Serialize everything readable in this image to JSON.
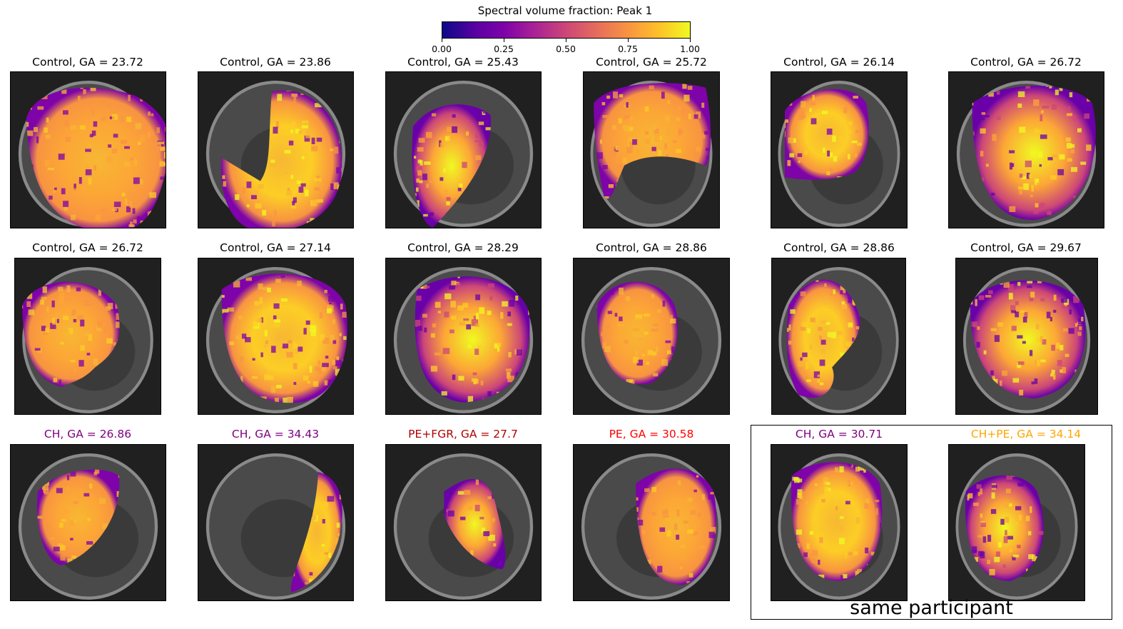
{
  "colorbar": {
    "title": "Spectral volume fraction: Peak 1",
    "ticks": [
      "0.00",
      "0.25",
      "0.50",
      "0.75",
      "1.00"
    ]
  },
  "panels": [
    {
      "title": "Control, GA = 23.72",
      "color": "#000000"
    },
    {
      "title": "Control, GA = 23.86",
      "color": "#000000"
    },
    {
      "title": "Control, GA = 25.43",
      "color": "#000000"
    },
    {
      "title": "Control, GA = 25.72",
      "color": "#000000"
    },
    {
      "title": "Control, GA = 26.14",
      "color": "#000000"
    },
    {
      "title": "Control, GA = 26.72",
      "color": "#000000"
    },
    {
      "title": "Control, GA = 26.72",
      "color": "#000000"
    },
    {
      "title": "Control, GA = 27.14",
      "color": "#000000"
    },
    {
      "title": "Control, GA = 28.29",
      "color": "#000000"
    },
    {
      "title": "Control, GA = 28.86",
      "color": "#000000"
    },
    {
      "title": "Control, GA = 28.86",
      "color": "#000000"
    },
    {
      "title": "Control, GA = 29.67",
      "color": "#000000"
    },
    {
      "title": "CH, GA = 26.86",
      "color": "#800080"
    },
    {
      "title": "CH, GA = 34.43",
      "color": "#800080"
    },
    {
      "title": "PE+FGR, GA = 27.7",
      "color": "#b00000"
    },
    {
      "title": "PE, GA = 30.58",
      "color": "#ff0000"
    },
    {
      "title": "CH, GA = 30.71",
      "color": "#800080"
    },
    {
      "title": "CH+PE, GA = 34.14",
      "color": "#ffa500"
    }
  ],
  "group_label": "same participant"
}
